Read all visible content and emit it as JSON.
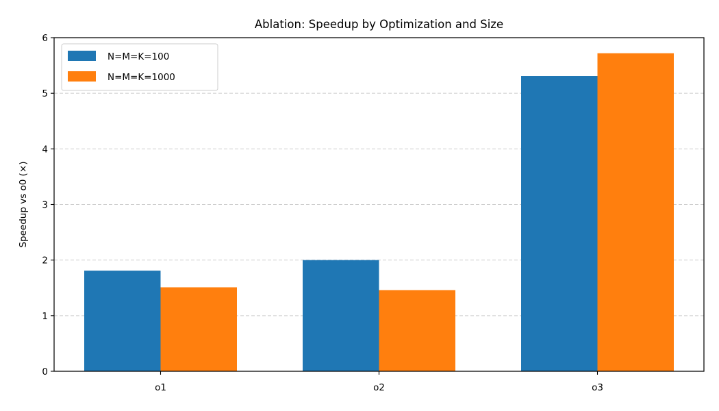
{
  "chart_data": {
    "type": "bar",
    "title": "Ablation: Speedup by Optimization and Size",
    "xlabel": "",
    "ylabel": "Speedup vs o0 (×)",
    "categories": [
      "o1",
      "o2",
      "o3"
    ],
    "series": [
      {
        "name": "N=M=K=100",
        "color": "#1f77b4",
        "values": [
          1.81,
          2.0,
          5.31
        ]
      },
      {
        "name": "N=M=K=1000",
        "color": "#ff7f0e",
        "values": [
          1.51,
          1.46,
          5.72
        ]
      }
    ],
    "ylim": [
      0,
      6
    ],
    "yticks": [
      0,
      1,
      2,
      3,
      4,
      5,
      6
    ],
    "ytick_labels": [
      "0",
      "1",
      "2",
      "3",
      "4",
      "5",
      "6"
    ],
    "grid": {
      "axis": "y",
      "style": "dashed",
      "color": "#cccccc"
    },
    "legend": {
      "placement": "top-left"
    }
  }
}
